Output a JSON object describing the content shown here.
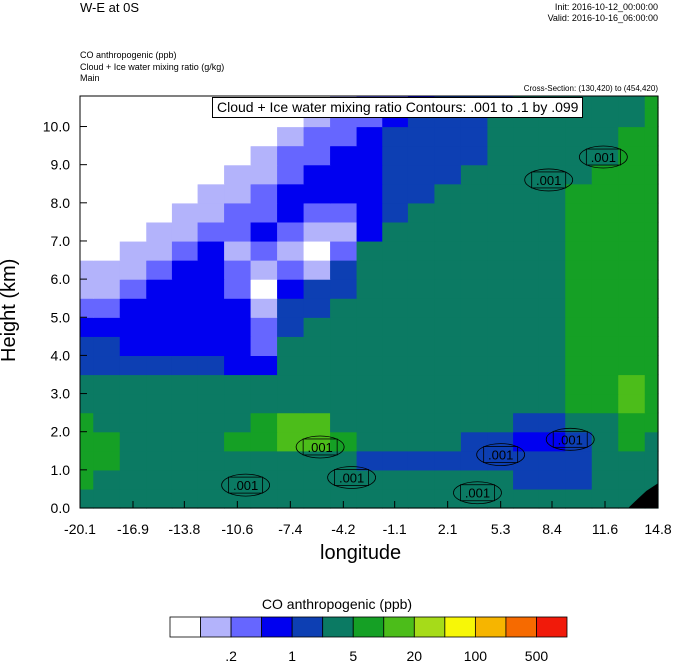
{
  "header": {
    "title": "W-E at 0S",
    "init": "Init: 2016-10-12_00:00:00",
    "valid": "Valid: 2016-10-16_06:00:00",
    "field_lines": [
      "CO anthropogenic   (ppb)",
      "Cloud + Ice water mixing ratio   (g/kg)",
      "Main"
    ],
    "cross_section": "Cross-Section: (130,420) to (454,420)",
    "contour_note": "Cloud + Ice water mixing ratio Contours: .001 to .1 by .099"
  },
  "colors": {
    "levels": [
      "#ffffff",
      "#b3b3fb",
      "#6666ff",
      "#0000f0",
      "#0d3fb3",
      "#0b7a63",
      "#15a025",
      "#4cbd1a",
      "#a6db19",
      "#f7f707",
      "#f6b500",
      "#f66a00",
      "#f11a0a"
    ],
    "terrain": "#000000"
  },
  "chart_data": {
    "type": "heatmap",
    "title": "W-E at 0S",
    "xlabel": "longitude",
    "ylabel": "Height (km)",
    "xlim": [
      -20.1,
      14.8
    ],
    "ylim": [
      0,
      10.8
    ],
    "x_ticks": [
      "-20.1",
      "-16.9",
      "-13.8",
      "-10.6",
      "-7.4",
      "-4.2",
      "-1.1",
      "2.1",
      "5.3",
      "8.4",
      "11.6",
      "14.8"
    ],
    "y_ticks": [
      "0.0",
      "1.0",
      "2.0",
      "3.0",
      "4.0",
      "5.0",
      "6.0",
      "7.0",
      "8.0",
      "9.0",
      "10.0"
    ],
    "x": [
      -20.1,
      -18.5,
      -16.9,
      -15.3,
      -13.8,
      -12.2,
      -10.6,
      -9.0,
      -7.4,
      -5.8,
      -4.2,
      -2.6,
      -1.1,
      0.5,
      2.1,
      3.7,
      5.3,
      6.8,
      8.4,
      10.0,
      11.6,
      13.2,
      14.8
    ],
    "y": [
      0.25,
      0.75,
      1.25,
      1.75,
      2.25,
      2.75,
      3.25,
      3.75,
      4.25,
      4.75,
      5.25,
      5.75,
      6.25,
      6.75,
      7.25,
      7.75,
      8.25,
      8.75,
      9.25,
      9.75,
      10.25,
      10.75
    ],
    "levels_index": [
      [
        5,
        5,
        5,
        5,
        5,
        5,
        5,
        5,
        5,
        5,
        5,
        5,
        5,
        5,
        5,
        5,
        5,
        5,
        5,
        5,
        5,
        5,
        5
      ],
      [
        6,
        5,
        5,
        5,
        5,
        5,
        5,
        5,
        5,
        5,
        5,
        5,
        5,
        5,
        5,
        5,
        5,
        4,
        4,
        4,
        5,
        5,
        5
      ],
      [
        6,
        6,
        5,
        5,
        5,
        5,
        5,
        5,
        5,
        5,
        5,
        4,
        4,
        4,
        4,
        4,
        4,
        4,
        4,
        4,
        5,
        5,
        5
      ],
      [
        6,
        6,
        5,
        5,
        5,
        5,
        6,
        6,
        7,
        7,
        6,
        5,
        5,
        5,
        5,
        4,
        4,
        3,
        3,
        4,
        5,
        6,
        5
      ],
      [
        6,
        5,
        5,
        5,
        5,
        5,
        5,
        6,
        7,
        7,
        5,
        5,
        5,
        5,
        5,
        5,
        5,
        4,
        4,
        5,
        5,
        6,
        6
      ],
      [
        5,
        5,
        5,
        5,
        5,
        5,
        5,
        5,
        5,
        5,
        5,
        5,
        5,
        5,
        5,
        5,
        5,
        5,
        5,
        6,
        6,
        7,
        6
      ],
      [
        5,
        5,
        5,
        5,
        5,
        5,
        5,
        5,
        5,
        5,
        5,
        5,
        5,
        5,
        5,
        5,
        5,
        5,
        5,
        6,
        6,
        7,
        6
      ],
      [
        4,
        4,
        4,
        4,
        4,
        4,
        3,
        3,
        5,
        5,
        5,
        5,
        5,
        5,
        5,
        5,
        5,
        5,
        5,
        6,
        6,
        6,
        6
      ],
      [
        4,
        4,
        3,
        3,
        3,
        3,
        3,
        2,
        5,
        5,
        5,
        5,
        5,
        5,
        5,
        5,
        5,
        5,
        5,
        6,
        6,
        6,
        6
      ],
      [
        3,
        3,
        3,
        3,
        3,
        3,
        3,
        2,
        4,
        5,
        5,
        5,
        5,
        5,
        5,
        5,
        5,
        5,
        5,
        6,
        6,
        6,
        6
      ],
      [
        2,
        2,
        3,
        3,
        3,
        3,
        3,
        1,
        4,
        4,
        5,
        5,
        5,
        5,
        5,
        5,
        5,
        5,
        5,
        6,
        6,
        6,
        6
      ],
      [
        1,
        1,
        2,
        3,
        3,
        3,
        2,
        0,
        3,
        4,
        4,
        5,
        5,
        5,
        5,
        5,
        5,
        5,
        5,
        6,
        6,
        6,
        6
      ],
      [
        1,
        1,
        1,
        2,
        3,
        3,
        2,
        1,
        2,
        1,
        4,
        5,
        5,
        5,
        5,
        5,
        5,
        5,
        5,
        6,
        6,
        6,
        6
      ],
      [
        0,
        0,
        1,
        1,
        2,
        3,
        1,
        2,
        1,
        0,
        2,
        5,
        5,
        5,
        5,
        5,
        5,
        5,
        5,
        6,
        6,
        6,
        6
      ],
      [
        0,
        0,
        0,
        1,
        1,
        2,
        2,
        3,
        2,
        1,
        1,
        3,
        5,
        5,
        5,
        5,
        5,
        5,
        5,
        6,
        6,
        6,
        6
      ],
      [
        0,
        0,
        0,
        0,
        1,
        1,
        2,
        2,
        3,
        2,
        2,
        3,
        4,
        5,
        5,
        5,
        5,
        5,
        5,
        6,
        6,
        6,
        6
      ],
      [
        0,
        0,
        0,
        0,
        0,
        1,
        1,
        2,
        3,
        3,
        3,
        3,
        4,
        4,
        5,
        5,
        5,
        5,
        5,
        6,
        6,
        6,
        6
      ],
      [
        0,
        0,
        0,
        0,
        0,
        0,
        1,
        1,
        2,
        3,
        3,
        3,
        4,
        4,
        4,
        5,
        5,
        5,
        5,
        5,
        6,
        6,
        6
      ],
      [
        0,
        0,
        0,
        0,
        0,
        0,
        0,
        1,
        2,
        2,
        3,
        3,
        4,
        4,
        4,
        4,
        5,
        5,
        5,
        5,
        5,
        6,
        6
      ],
      [
        0,
        0,
        0,
        0,
        0,
        0,
        0,
        0,
        1,
        2,
        2,
        3,
        4,
        4,
        4,
        4,
        5,
        5,
        5,
        5,
        5,
        6,
        6
      ],
      [
        0,
        0,
        0,
        0,
        0,
        0,
        0,
        0,
        0,
        1,
        2,
        2,
        3,
        4,
        4,
        4,
        5,
        5,
        5,
        5,
        5,
        5,
        6
      ],
      [
        0,
        0,
        0,
        0,
        0,
        0,
        0,
        0,
        0,
        0,
        1,
        2,
        2,
        3,
        4,
        4,
        4,
        5,
        5,
        5,
        5,
        5,
        6
      ]
    ],
    "contour_labels": [
      {
        "text": ".001",
        "x": -10.1,
        "y": 0.6
      },
      {
        "text": ".001",
        "x": -5.6,
        "y": 1.6
      },
      {
        "text": ".001",
        "x": -3.7,
        "y": 0.8
      },
      {
        "text": ".001",
        "x": 3.9,
        "y": 0.4
      },
      {
        "text": ".001",
        "x": 5.3,
        "y": 1.4
      },
      {
        "text": ".001",
        "x": 9.5,
        "y": 1.8
      },
      {
        "text": ".001",
        "x": 8.2,
        "y": 8.6
      },
      {
        "text": ".001",
        "x": 11.5,
        "y": 9.2
      }
    ],
    "colorbar": {
      "title": "CO anthropogenic  (ppb)",
      "labels": [
        ".2",
        "1",
        "5",
        "20",
        "100",
        "500"
      ]
    }
  }
}
